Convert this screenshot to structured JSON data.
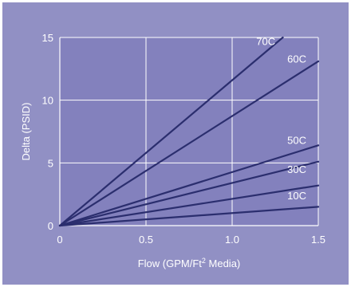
{
  "chart_data": {
    "type": "line",
    "title": "",
    "xlabel": "Flow (GPM/Ft",
    "xlabel_sup": "2",
    "xlabel_suffix": " Media)",
    "ylabel": "Delta (PSID)",
    "xlim": [
      0,
      1.5
    ],
    "ylim": [
      0,
      15
    ],
    "xticks": [
      "0",
      "0.5",
      "1.0",
      "1.5"
    ],
    "yticks": [
      "0",
      "5",
      "10",
      "15"
    ],
    "grid": true,
    "colors": {
      "background": "#9190c4",
      "plot_area": "#8381bd",
      "line": "#2b2e6e",
      "grid": "#ffffff",
      "text": "#ffffff"
    },
    "series": [
      {
        "name": "70C",
        "x": [
          0,
          1.32
        ],
        "y": [
          0,
          15.3
        ],
        "label_at": [
          1.14,
          14.4
        ]
      },
      {
        "name": "60C",
        "x": [
          0,
          1.5
        ],
        "y": [
          0,
          13.1
        ],
        "label_at": [
          1.32,
          13.0
        ]
      },
      {
        "name": "50C",
        "x": [
          0,
          1.5
        ],
        "y": [
          0,
          6.4
        ],
        "label_at": [
          1.32,
          6.5
        ]
      },
      {
        "name": "30C",
        "x": [
          0,
          1.5
        ],
        "y": [
          0,
          5.1
        ],
        "label_at": [
          1.32,
          4.2
        ]
      },
      {
        "name": "",
        "x": [
          0,
          1.5
        ],
        "y": [
          0,
          3.2
        ],
        "label_at": null
      },
      {
        "name": "10C",
        "x": [
          0,
          1.5
        ],
        "y": [
          0,
          1.5
        ],
        "label_at": [
          1.32,
          2.1
        ]
      }
    ]
  }
}
